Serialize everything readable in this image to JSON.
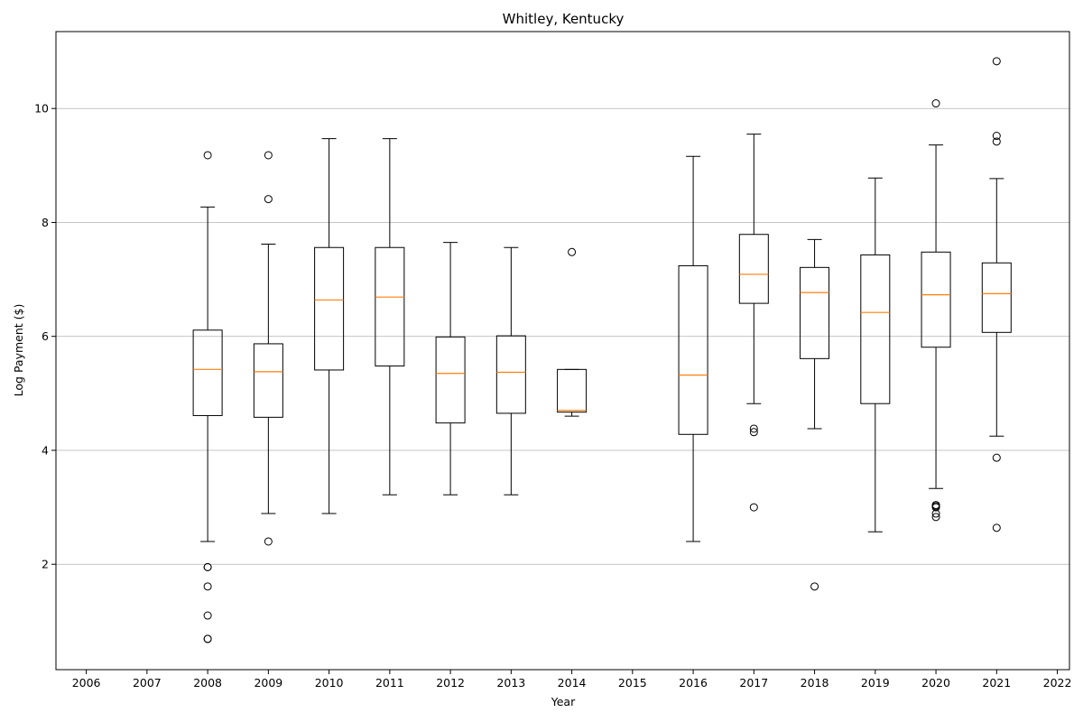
{
  "chart_data": {
    "type": "box",
    "title": "Whitley, Kentucky",
    "xlabel": "Year",
    "ylabel": "Log Payment ($)",
    "ylim": [
      0.15,
      11.35
    ],
    "grid": "y",
    "x_ticks": [
      "2006",
      "2007",
      "2008",
      "2009",
      "2010",
      "2011",
      "2012",
      "2013",
      "2014",
      "2015",
      "2016",
      "2017",
      "2018",
      "2019",
      "2020",
      "2021",
      "2022"
    ],
    "y_ticks": [
      2,
      4,
      6,
      8,
      10
    ],
    "colors": {
      "box": "#000000",
      "median": "#ff7f0e",
      "grid": "#b0b0b0"
    },
    "boxes": [
      {
        "year": "2008",
        "whisker_low": 2.4,
        "q1": 4.61,
        "median": 5.42,
        "q3": 6.11,
        "whisker_high": 8.27,
        "outliers": [
          9.18,
          1.95,
          1.95,
          1.61,
          1.1,
          0.69,
          0.69
        ]
      },
      {
        "year": "2009",
        "whisker_low": 2.89,
        "q1": 4.58,
        "median": 5.38,
        "q3": 5.87,
        "whisker_high": 7.62,
        "outliers": [
          9.18,
          8.41,
          2.4
        ]
      },
      {
        "year": "2010",
        "whisker_low": 2.89,
        "q1": 5.41,
        "median": 6.64,
        "q3": 7.56,
        "whisker_high": 9.47,
        "outliers": []
      },
      {
        "year": "2011",
        "whisker_low": 3.22,
        "q1": 5.48,
        "median": 6.69,
        "q3": 7.56,
        "whisker_high": 9.47,
        "outliers": []
      },
      {
        "year": "2012",
        "whisker_low": 3.22,
        "q1": 4.48,
        "median": 5.35,
        "q3": 5.99,
        "whisker_high": 7.65,
        "outliers": []
      },
      {
        "year": "2013",
        "whisker_low": 3.22,
        "q1": 4.65,
        "median": 5.37,
        "q3": 6.01,
        "whisker_high": 7.56,
        "outliers": []
      },
      {
        "year": "2014",
        "whisker_low": 4.6,
        "q1": 4.67,
        "median": 4.7,
        "q3": 5.42,
        "whisker_high": 5.42,
        "outliers": [
          7.48
        ]
      },
      {
        "year": "2016",
        "whisker_low": 2.4,
        "q1": 4.28,
        "median": 5.32,
        "q3": 7.24,
        "whisker_high": 9.16,
        "outliers": []
      },
      {
        "year": "2017",
        "whisker_low": 4.82,
        "q1": 6.58,
        "median": 7.09,
        "q3": 7.79,
        "whisker_high": 9.55,
        "outliers": [
          4.38,
          4.32,
          3.0
        ]
      },
      {
        "year": "2018",
        "whisker_low": 4.38,
        "q1": 5.61,
        "median": 6.77,
        "q3": 7.21,
        "whisker_high": 7.7,
        "outliers": [
          1.61
        ]
      },
      {
        "year": "2019",
        "whisker_low": 2.57,
        "q1": 4.82,
        "median": 6.42,
        "q3": 7.43,
        "whisker_high": 8.78,
        "outliers": []
      },
      {
        "year": "2020",
        "whisker_low": 3.33,
        "q1": 5.81,
        "median": 6.73,
        "q3": 7.48,
        "whisker_high": 9.36,
        "outliers": [
          10.09,
          3.04,
          3.02,
          3.0,
          2.89,
          2.83
        ]
      },
      {
        "year": "2021",
        "whisker_low": 4.25,
        "q1": 6.07,
        "median": 6.75,
        "q3": 7.29,
        "whisker_high": 8.77,
        "outliers": [
          10.83,
          9.52,
          9.42,
          3.87,
          2.64
        ]
      }
    ]
  }
}
